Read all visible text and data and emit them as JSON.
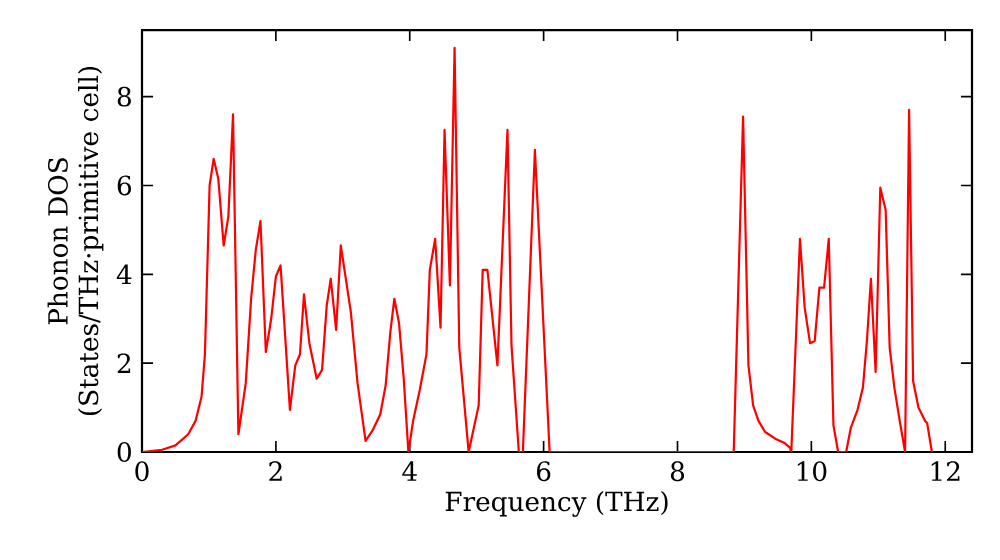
{
  "chart_data": {
    "type": "line",
    "xlabel": "Frequency (THz)",
    "ylabel": "Phonon DOS (States/THz·primitive cell)",
    "x": [
      0,
      0.3,
      0.5,
      0.69,
      0.8,
      0.89,
      0.94,
      1.01,
      1.07,
      1.14,
      1.22,
      1.29,
      1.36,
      1.44,
      1.55,
      1.63,
      1.7,
      1.77,
      1.85,
      1.93,
      2.0,
      2.07,
      2.21,
      2.29,
      2.36,
      2.42,
      2.5,
      2.61,
      2.69,
      2.76,
      2.82,
      2.9,
      2.97,
      3.12,
      3.22,
      3.34,
      3.45,
      3.56,
      3.64,
      3.71,
      3.77,
      3.84,
      3.91,
      3.98,
      4.05,
      4.15,
      4.25,
      4.3,
      4.38,
      4.46,
      4.52,
      4.6,
      4.67,
      4.74,
      4.88,
      5.03,
      5.09,
      5.16,
      5.31,
      5.46,
      5.52,
      5.63,
      5.69,
      5.87,
      6.09,
      8.84,
      8.98,
      9.06,
      9.13,
      9.21,
      9.31,
      9.46,
      9.6,
      9.68,
      9.7,
      9.83,
      9.9,
      9.98,
      10.05,
      10.12,
      10.19,
      10.26,
      10.33,
      10.4,
      10.52,
      10.59,
      10.69,
      10.77,
      10.83,
      10.89,
      10.96,
      11.03,
      11.11,
      11.17,
      11.24,
      11.32,
      11.4,
      11.46,
      11.52,
      11.6,
      11.7,
      11.73,
      11.8
    ],
    "series": [
      {
        "color": "#ff0000",
        "values": [
          0,
          0.05,
          0.15,
          0.4,
          0.7,
          1.25,
          2.2,
          6.0,
          6.6,
          6.15,
          4.65,
          5.3,
          7.6,
          0.4,
          1.55,
          3.45,
          4.55,
          5.2,
          2.25,
          3.0,
          3.95,
          4.2,
          0.95,
          1.95,
          2.2,
          3.55,
          2.45,
          1.65,
          1.85,
          3.3,
          3.9,
          2.75,
          4.65,
          3.15,
          1.55,
          0.25,
          0.5,
          0.85,
          1.5,
          2.7,
          3.45,
          2.9,
          1.65,
          0,
          0.7,
          1.4,
          2.2,
          4.1,
          4.8,
          2.8,
          7.25,
          3.75,
          9.1,
          2.35,
          0,
          1.05,
          4.1,
          4.1,
          1.95,
          7.25,
          2.4,
          0,
          0,
          6.8,
          0,
          0,
          7.55,
          1.95,
          1.05,
          0.7,
          0.45,
          0.3,
          0.2,
          0.1,
          0,
          4.8,
          3.25,
          2.45,
          2.5,
          3.7,
          3.7,
          4.8,
          0.6,
          0,
          0,
          0.55,
          0.95,
          1.45,
          2.5,
          3.9,
          1.8,
          5.95,
          5.45,
          2.35,
          1.45,
          0.7,
          0,
          7.7,
          1.6,
          1.0,
          0.7,
          0.65,
          0
        ]
      }
    ],
    "xlim": [
      0,
      12.4
    ],
    "ylim": [
      0,
      9.5
    ],
    "xticks": [
      0,
      2,
      4,
      6,
      8,
      10,
      12
    ],
    "yticks": [
      0,
      2,
      4,
      6,
      8
    ]
  }
}
